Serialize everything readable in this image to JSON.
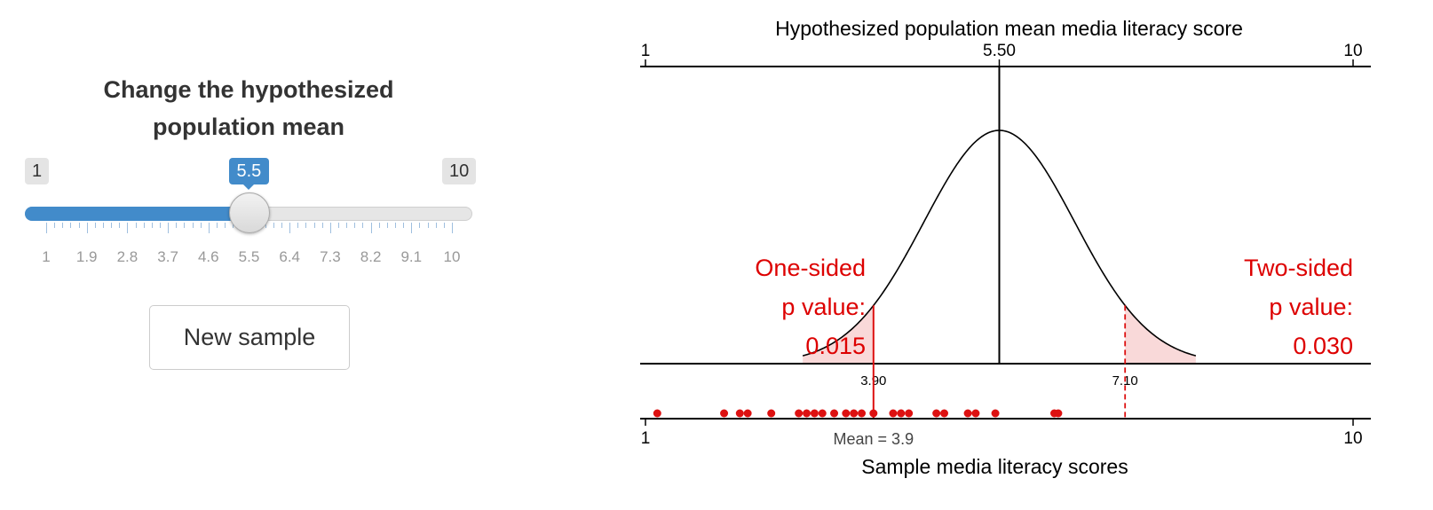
{
  "panel": {
    "title_line1": "Change the hypothesized",
    "title_line2": "population mean",
    "slider": {
      "min_label": "1",
      "max_label": "10",
      "min": 1,
      "max": 10,
      "value": 5.5,
      "value_label": "5.5",
      "tick_labels": [
        "1",
        "1.9",
        "2.8",
        "3.7",
        "4.6",
        "5.5",
        "6.4",
        "7.3",
        "8.2",
        "9.1",
        "10"
      ],
      "accent": "#428bca"
    },
    "button_label": "New sample"
  },
  "chart_data": {
    "type": "scatter",
    "top_axis": {
      "title": "Hypothesized population mean media literacy score",
      "range": [
        1,
        10
      ],
      "tick_labels": [
        "1",
        "5.50",
        "10"
      ],
      "tick_values": [
        1,
        5.5,
        10
      ]
    },
    "bottom_axis": {
      "title": "Sample media literacy scores",
      "range": [
        1,
        10
      ],
      "tick_labels": [
        "1",
        "10"
      ],
      "tick_values": [
        1,
        10
      ]
    },
    "distribution": {
      "center": 5.5,
      "center_label": "5.50",
      "sd": 0.96,
      "critical_left": 3.9,
      "critical_left_label": "3.90",
      "critical_right": 7.1,
      "critical_right_label": "7.10",
      "curve_color": "#000000",
      "tail_fill": "#f9d9d9"
    },
    "annotations": {
      "one_sided_line1": "One-sided",
      "one_sided_line2": "p value:",
      "one_sided_value": "0.015",
      "two_sided_line1": "Two-sided",
      "two_sided_line2": "p value:",
      "two_sided_value": "0.030",
      "color": "#dd0000"
    },
    "sample_mean": 3.9,
    "sample_mean_label": "Mean = 3.9",
    "sample_points": [
      1.15,
      2.0,
      2.2,
      2.3,
      2.6,
      2.95,
      3.05,
      3.15,
      3.25,
      3.4,
      3.55,
      3.65,
      3.75,
      3.9,
      4.15,
      4.25,
      4.35,
      4.7,
      4.8,
      5.1,
      5.2,
      5.45,
      6.2,
      6.25
    ],
    "point_color": "#dd1111"
  }
}
